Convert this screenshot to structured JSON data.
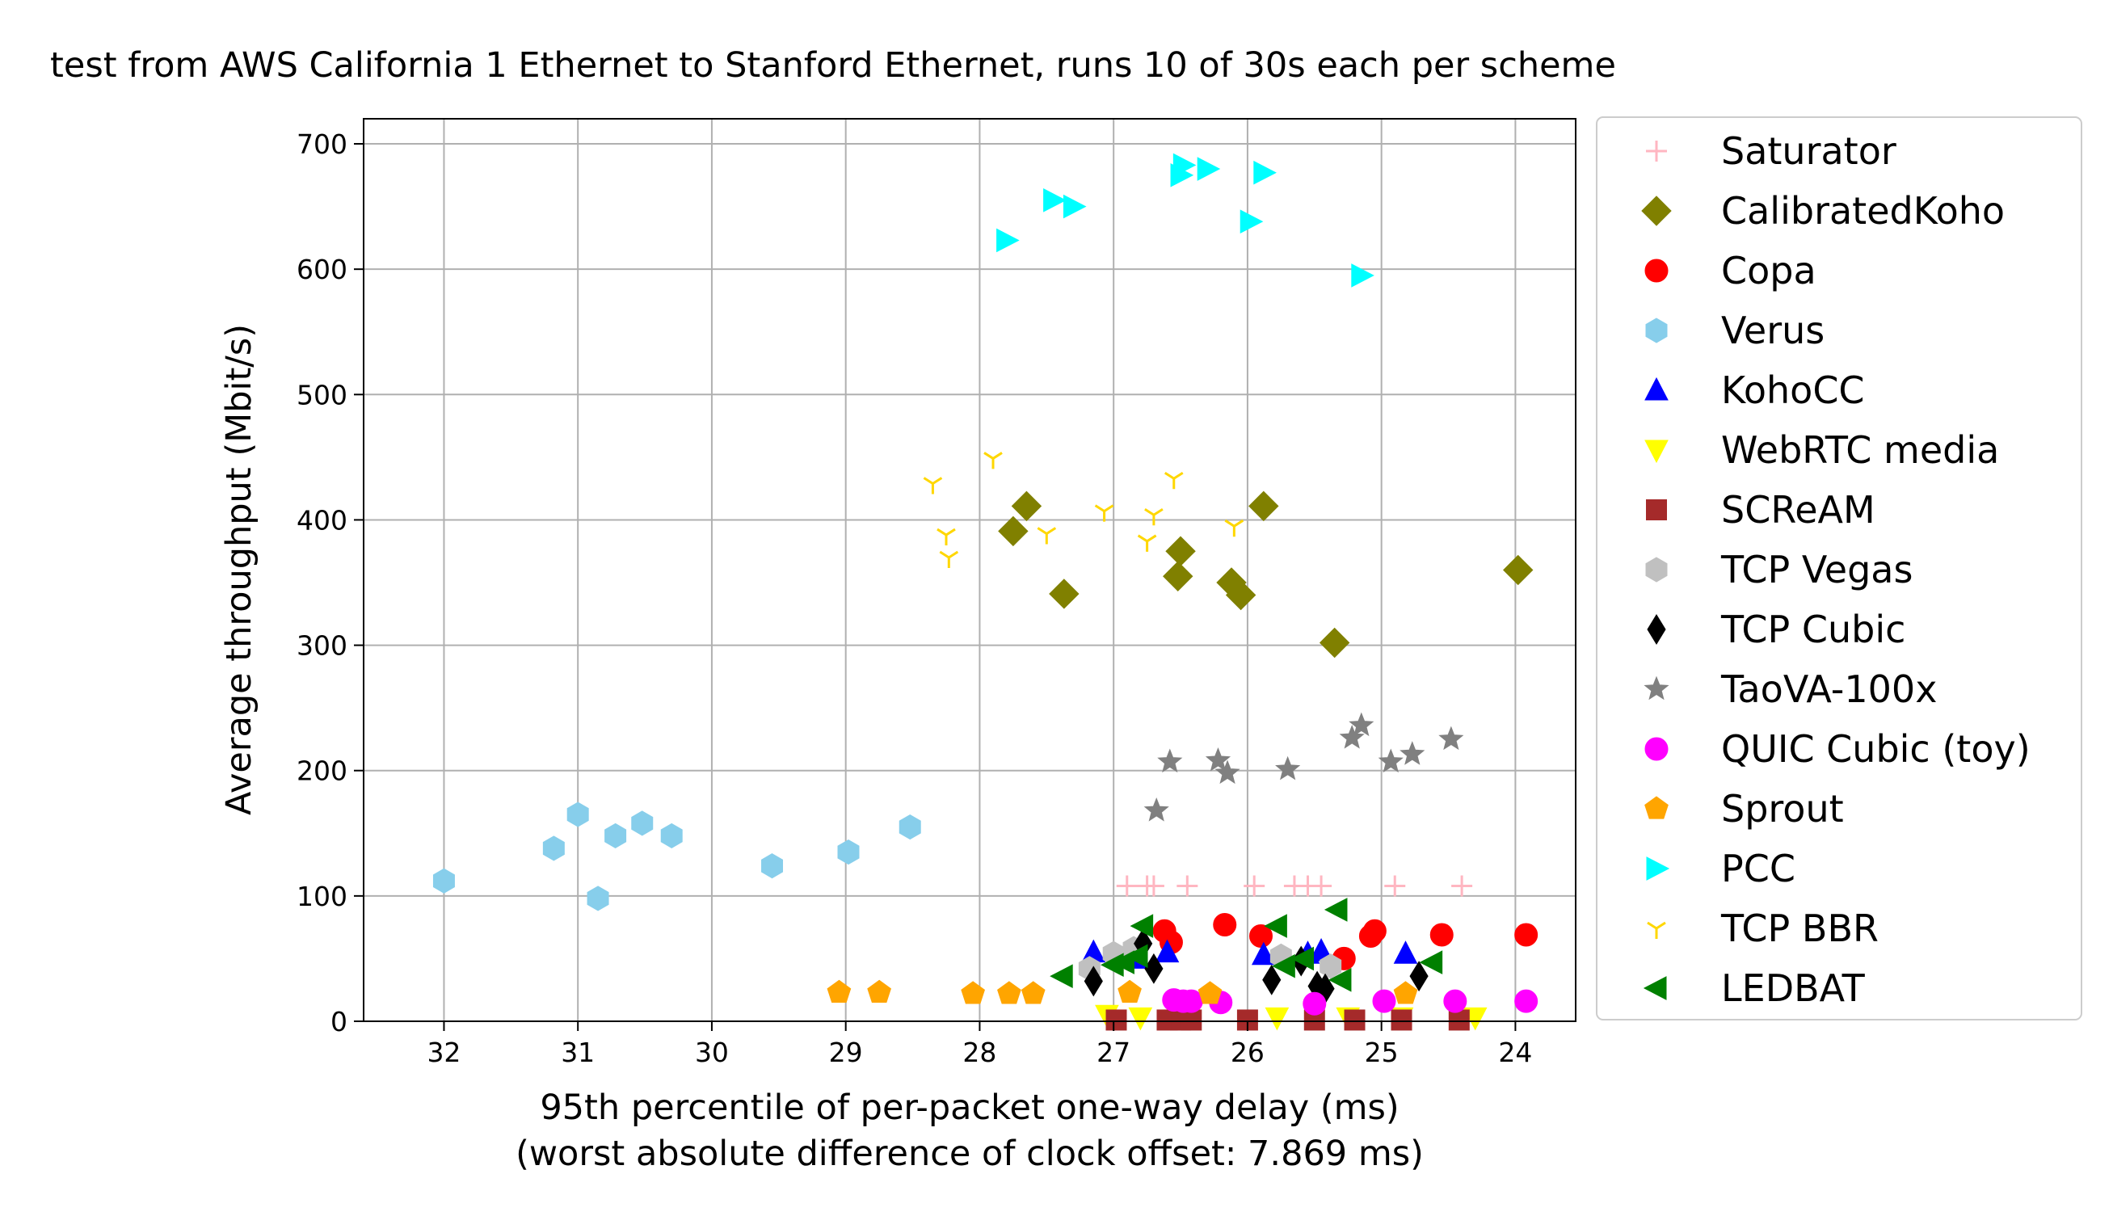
{
  "chart_data": {
    "type": "scatter",
    "title": "test from AWS California 1 Ethernet to Stanford Ethernet, runs 10 of 30s each per scheme",
    "xlabel": "95th percentile of per-packet one-way delay (ms)",
    "xlabel2": "(worst absolute difference of clock offset: 7.869 ms)",
    "ylabel": "Average throughput (Mbit/s)",
    "xlim": [
      32.6,
      23.55
    ],
    "ylim": [
      0,
      720
    ],
    "x_inverted": true,
    "grid": true,
    "legend_position": "outside-right",
    "xticks": [
      32,
      31,
      30,
      29,
      28,
      27,
      26,
      25,
      24
    ],
    "xtick_labels": [
      "32",
      "31",
      "30",
      "29",
      "28",
      "27",
      "26",
      "25",
      "24"
    ],
    "yticks": [
      0,
      100,
      200,
      300,
      400,
      500,
      600,
      700
    ],
    "ytick_labels": [
      "0",
      "100",
      "200",
      "300",
      "400",
      "500",
      "600",
      "700"
    ],
    "series": [
      {
        "name": "Saturator",
        "marker": "plus",
        "color": "#ffb6c1",
        "points": [
          [
            26.9,
            108
          ],
          [
            26.75,
            108
          ],
          [
            26.7,
            108
          ],
          [
            26.45,
            108
          ],
          [
            25.95,
            108
          ],
          [
            25.65,
            108
          ],
          [
            25.55,
            108
          ],
          [
            25.45,
            108
          ],
          [
            24.9,
            108
          ],
          [
            24.4,
            108
          ]
        ]
      },
      {
        "name": "CalibratedKoho",
        "marker": "diamond",
        "color": "#808000",
        "points": [
          [
            27.65,
            411
          ],
          [
            27.75,
            391
          ],
          [
            27.37,
            341
          ],
          [
            26.5,
            375
          ],
          [
            26.52,
            355
          ],
          [
            26.12,
            350
          ],
          [
            26.05,
            340
          ],
          [
            25.88,
            411
          ],
          [
            25.35,
            302
          ],
          [
            23.98,
            360
          ]
        ]
      },
      {
        "name": "Copa",
        "marker": "circle",
        "color": "#ff0000",
        "points": [
          [
            26.62,
            72
          ],
          [
            26.57,
            63
          ],
          [
            26.17,
            77
          ],
          [
            25.9,
            68
          ],
          [
            25.28,
            50
          ],
          [
            25.05,
            72
          ],
          [
            25.08,
            68
          ],
          [
            24.55,
            69
          ],
          [
            23.92,
            69
          ]
        ]
      },
      {
        "name": "Verus",
        "marker": "hexagon",
        "color": "#87ceeb",
        "points": [
          [
            32.0,
            112
          ],
          [
            31.18,
            138
          ],
          [
            31.0,
            165
          ],
          [
            30.85,
            98
          ],
          [
            30.72,
            148
          ],
          [
            30.52,
            158
          ],
          [
            30.3,
            148
          ],
          [
            29.55,
            124
          ],
          [
            28.98,
            135
          ],
          [
            28.52,
            155
          ]
        ]
      },
      {
        "name": "KohoCC",
        "marker": "triangle-up",
        "color": "#0000ff",
        "points": [
          [
            27.15,
            55
          ],
          [
            26.82,
            50
          ],
          [
            26.6,
            55
          ],
          [
            25.88,
            53
          ],
          [
            25.55,
            54
          ],
          [
            25.45,
            56
          ],
          [
            24.82,
            54
          ]
        ]
      },
      {
        "name": "WebRTC media",
        "marker": "triangle-down",
        "color": "#ffff00",
        "points": [
          [
            27.05,
            5
          ],
          [
            26.8,
            3
          ],
          [
            25.78,
            3
          ],
          [
            25.25,
            3
          ],
          [
            24.85,
            3
          ],
          [
            24.3,
            3
          ]
        ]
      },
      {
        "name": "SCReAM",
        "marker": "square",
        "color": "#a52a2a",
        "points": [
          [
            26.98,
            1
          ],
          [
            26.6,
            1
          ],
          [
            26.5,
            1
          ],
          [
            26.42,
            1
          ],
          [
            26.0,
            1
          ],
          [
            25.5,
            1
          ],
          [
            25.2,
            1
          ],
          [
            24.85,
            1
          ],
          [
            24.42,
            1
          ]
        ]
      },
      {
        "name": "TCP Vegas",
        "marker": "hexagon",
        "color": "#c0c0c0",
        "points": [
          [
            27.18,
            42
          ],
          [
            27.0,
            54
          ],
          [
            26.85,
            58
          ],
          [
            25.75,
            52
          ],
          [
            25.38,
            44
          ]
        ]
      },
      {
        "name": "TCP Cubic",
        "marker": "thin-diamond",
        "color": "#000000",
        "points": [
          [
            27.15,
            32
          ],
          [
            26.78,
            62
          ],
          [
            26.7,
            42
          ],
          [
            25.82,
            33
          ],
          [
            25.6,
            48
          ],
          [
            25.48,
            28
          ],
          [
            25.42,
            26
          ],
          [
            24.72,
            36
          ]
        ]
      },
      {
        "name": "TaoVA-100x",
        "marker": "star",
        "color": "#808080",
        "points": [
          [
            26.68,
            168
          ],
          [
            26.58,
            207
          ],
          [
            26.22,
            208
          ],
          [
            26.15,
            198
          ],
          [
            25.7,
            201
          ],
          [
            25.22,
            226
          ],
          [
            25.15,
            236
          ],
          [
            24.93,
            207
          ],
          [
            24.77,
            213
          ],
          [
            24.48,
            225
          ]
        ]
      },
      {
        "name": "QUIC Cubic (toy)",
        "marker": "circle",
        "color": "#ff00ff",
        "points": [
          [
            26.55,
            17
          ],
          [
            26.48,
            16
          ],
          [
            26.42,
            16
          ],
          [
            26.2,
            15
          ],
          [
            25.5,
            14
          ],
          [
            24.98,
            16
          ],
          [
            24.45,
            16
          ],
          [
            23.92,
            16
          ]
        ]
      },
      {
        "name": "Sprout",
        "marker": "pentagon",
        "color": "#ffa500",
        "points": [
          [
            29.05,
            23
          ],
          [
            28.75,
            23
          ],
          [
            28.05,
            22
          ],
          [
            27.78,
            22
          ],
          [
            27.6,
            22
          ],
          [
            26.88,
            23
          ],
          [
            26.28,
            22
          ],
          [
            24.82,
            22
          ]
        ]
      },
      {
        "name": "PCC",
        "marker": "triangle-right",
        "color": "#00ffff",
        "points": [
          [
            27.8,
            623
          ],
          [
            27.45,
            655
          ],
          [
            27.3,
            650
          ],
          [
            26.5,
            675
          ],
          [
            26.48,
            683
          ],
          [
            26.3,
            680
          ],
          [
            25.98,
            638
          ],
          [
            25.88,
            677
          ],
          [
            25.15,
            595
          ]
        ]
      },
      {
        "name": "TCP BBR",
        "marker": "tri-down",
        "color": "#ffd700",
        "points": [
          [
            28.35,
            429
          ],
          [
            28.25,
            388
          ],
          [
            28.23,
            370
          ],
          [
            27.9,
            449
          ],
          [
            27.5,
            389
          ],
          [
            27.07,
            407
          ],
          [
            26.75,
            383
          ],
          [
            26.7,
            404
          ],
          [
            26.55,
            433
          ],
          [
            26.1,
            395
          ]
        ]
      },
      {
        "name": "LEDBAT",
        "marker": "triangle-left",
        "color": "#008000",
        "points": [
          [
            27.38,
            36
          ],
          [
            27.0,
            45
          ],
          [
            26.92,
            47
          ],
          [
            26.82,
            52
          ],
          [
            26.78,
            76
          ],
          [
            25.78,
            76
          ],
          [
            25.72,
            44
          ],
          [
            25.58,
            50
          ],
          [
            25.3,
            33
          ],
          [
            25.33,
            89
          ],
          [
            24.62,
            47
          ]
        ]
      }
    ]
  }
}
